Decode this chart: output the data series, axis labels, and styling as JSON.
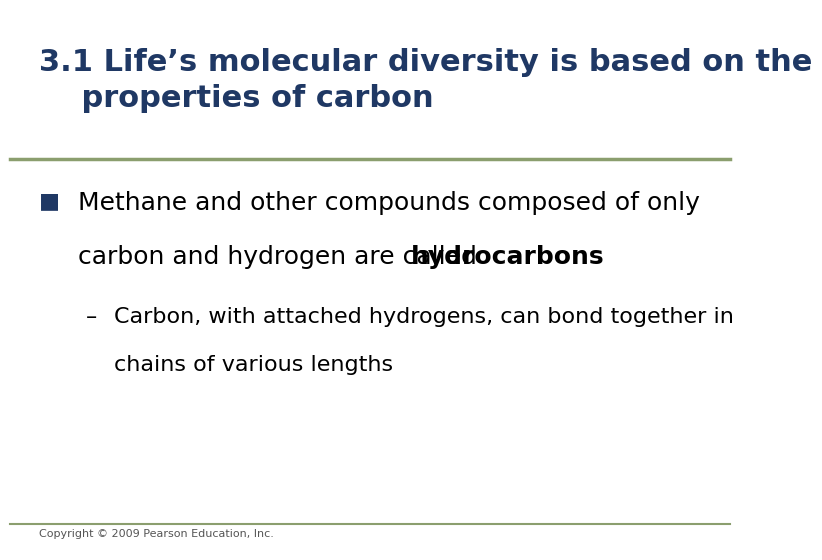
{
  "title_line1": "3.1 Life’s molecular diversity is based on the",
  "title_line2": "    properties of carbon",
  "title_color": "#1F3864",
  "title_fontsize": 22,
  "separator_color": "#8B9E6E",
  "bullet_symbol": "■",
  "bullet_color": "#1F3864",
  "bullet_fontsize": 18,
  "bullet_text_line1": "Methane and other compounds composed of only",
  "bullet_text_line2_normal": "carbon and hydrogen are called ",
  "bullet_text_line2_bold": "hydrocarbons",
  "sub_bullet_prefix": "–",
  "sub_bullet_line1": "Carbon, with attached hydrogens, can bond together in",
  "sub_bullet_line2": "chains of various lengths",
  "sub_bullet_fontsize": 16,
  "sub_bullet_color": "#000000",
  "copyright_text": "Copyright © 2009 Pearson Education, Inc.",
  "copyright_fontsize": 8,
  "background_color": "#FFFFFF",
  "bottom_line_color": "#8B9E6E"
}
